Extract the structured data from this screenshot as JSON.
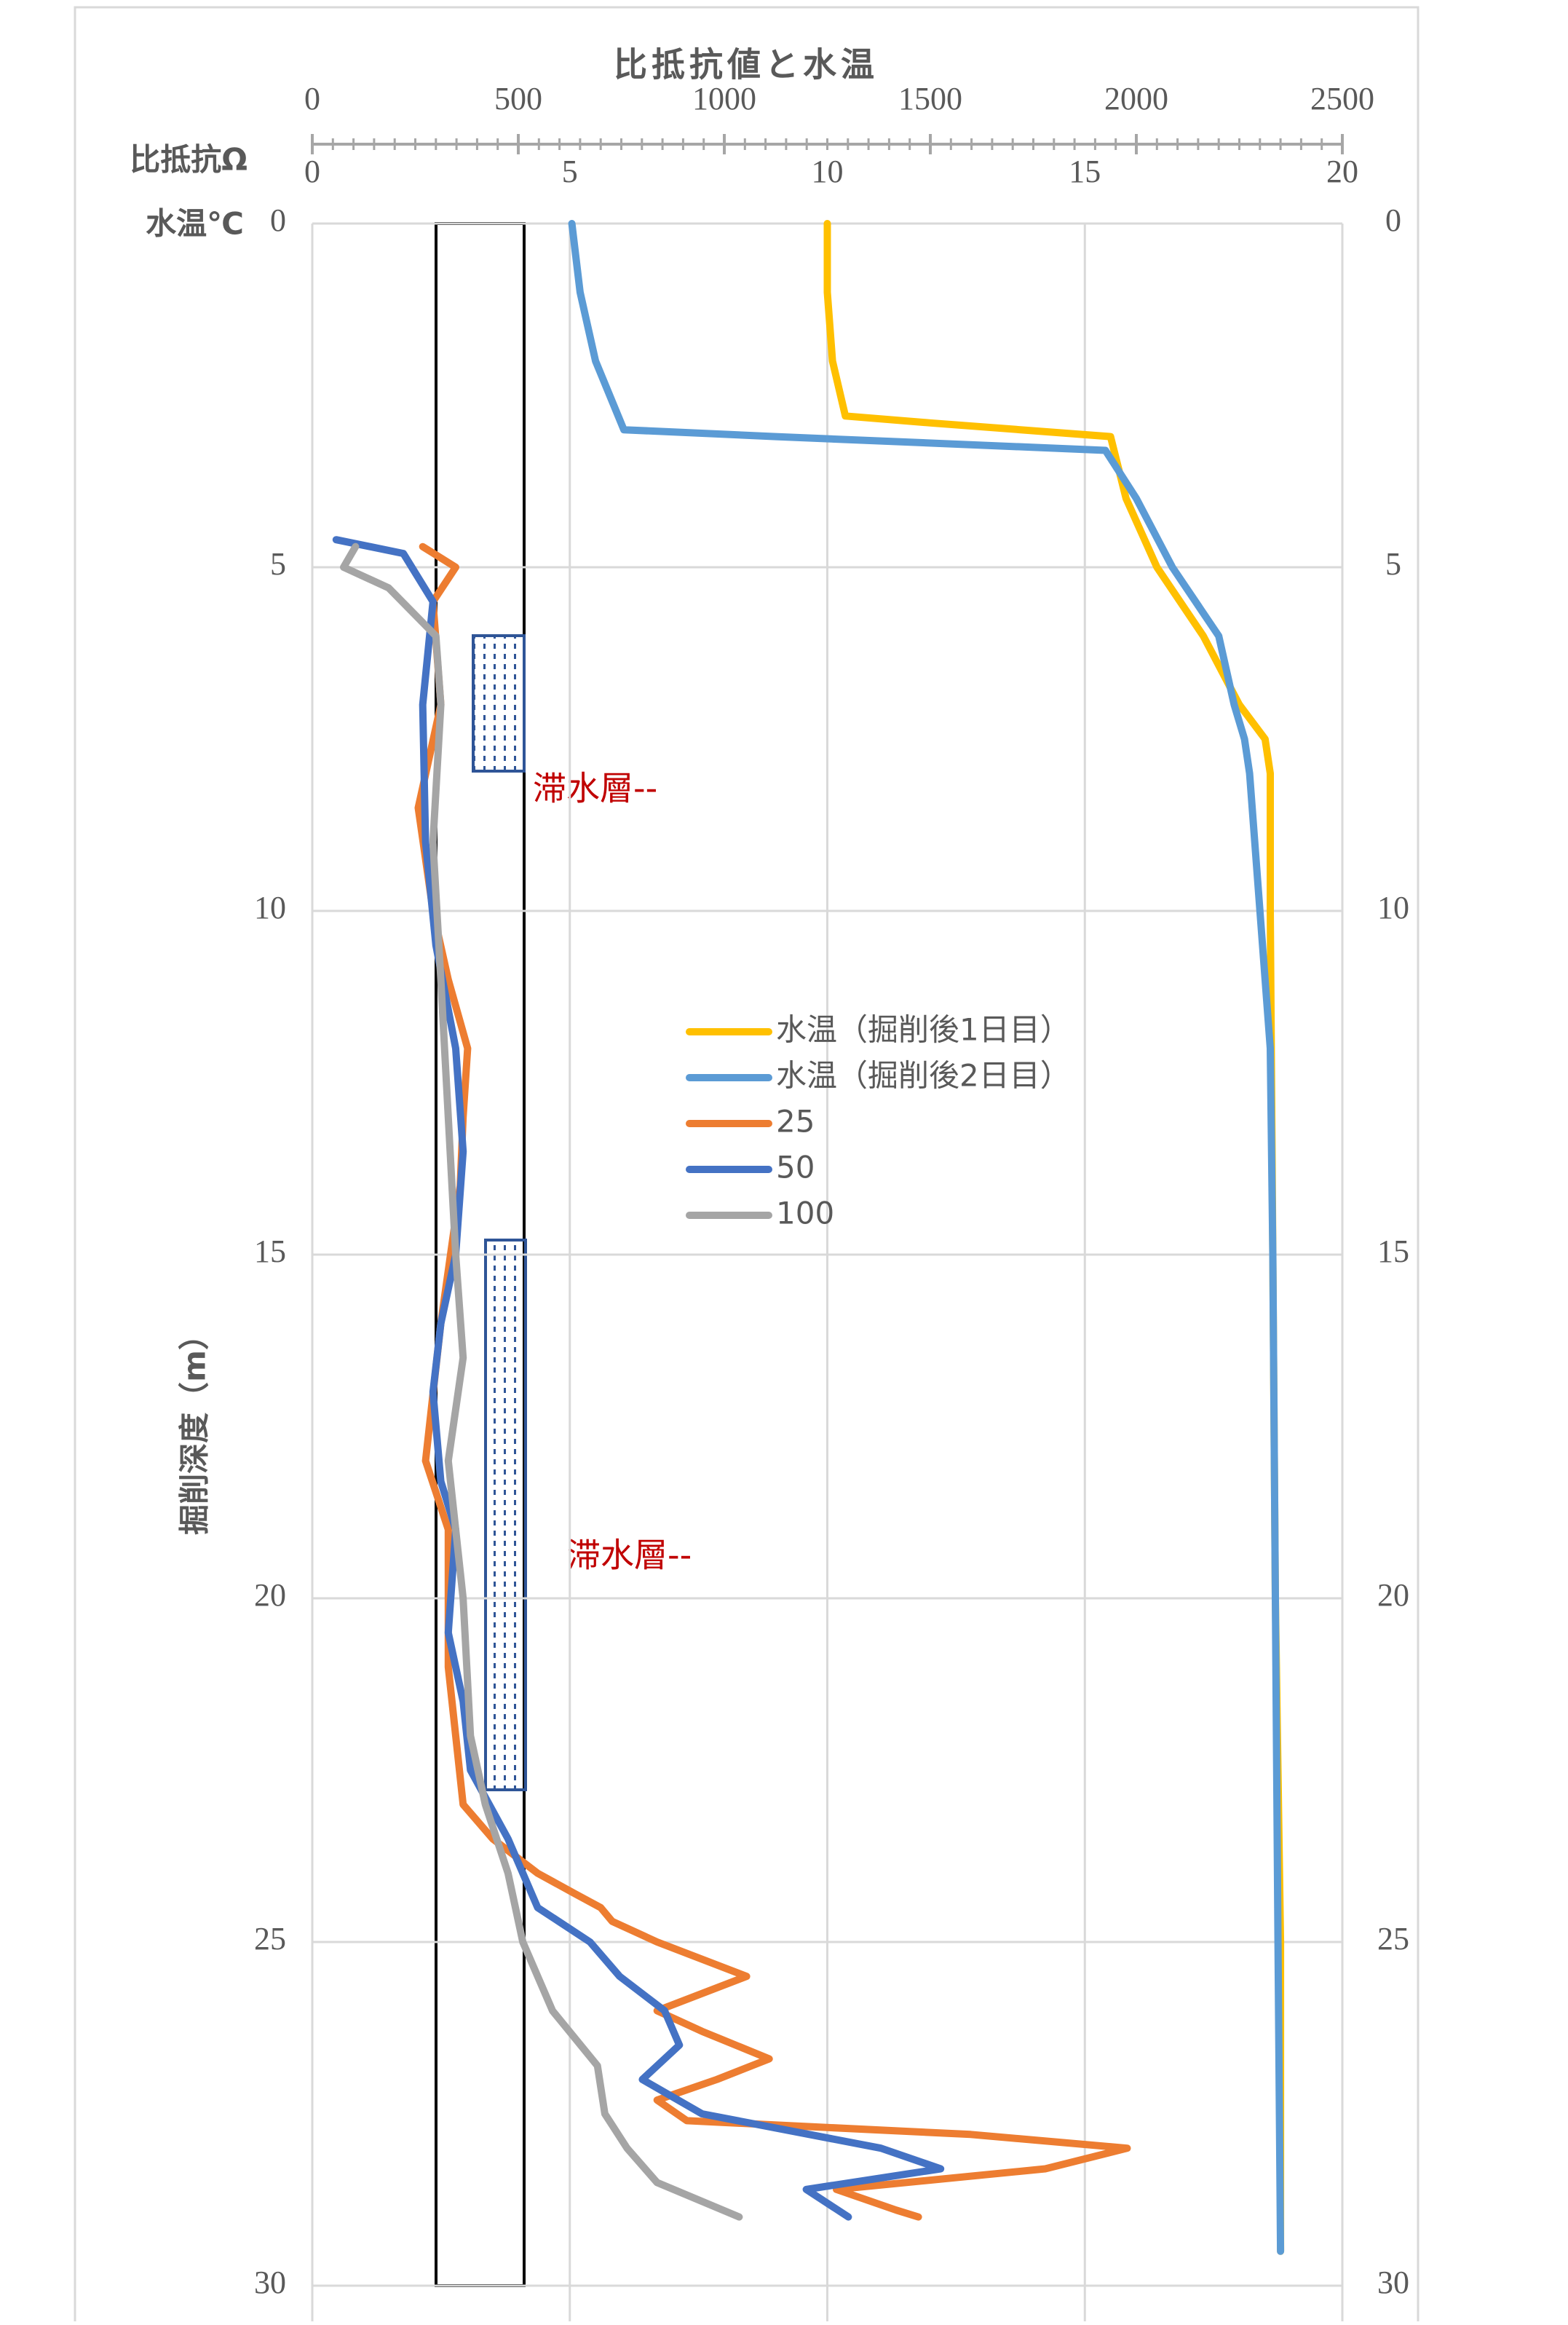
{
  "chart_data": {
    "type": "line",
    "title": "比抵抗値と水温",
    "x_label": "比抵抗Ω",
    "x2_label": "水温℃",
    "y_label": "掘削深度（m）",
    "annotations": [
      "滞水層--",
      "滞水層--"
    ],
    "xlim": [
      0,
      2500
    ],
    "xticks": [
      0,
      500,
      1000,
      1500,
      2000,
      2500
    ],
    "x2lim": [
      0,
      20
    ],
    "x2ticks": [
      0,
      5,
      10,
      15,
      20
    ],
    "ylim": [
      0,
      30
    ],
    "yticks": [
      0,
      5,
      10,
      15,
      20,
      25,
      30
    ],
    "y_reversed": true,
    "grid": true,
    "series": [
      {
        "name": "水温（掘削後1日目）",
        "color": "#ffc000",
        "axis": "x2",
        "depth": [
          0,
          1,
          2,
          2.8,
          2.9,
          3.1,
          4,
          5,
          6,
          7,
          7.5,
          8,
          10,
          15,
          20,
          25,
          29.5
        ],
        "values": [
          10.0,
          10.0,
          10.1,
          10.35,
          12.0,
          15.5,
          15.8,
          16.4,
          17.3,
          18.0,
          18.5,
          18.6,
          18.6,
          18.65,
          18.7,
          18.8,
          18.8
        ]
      },
      {
        "name": "水温（掘削後2日目）",
        "color": "#5b9bd5",
        "axis": "x2",
        "depth": [
          0,
          1,
          2,
          3,
          3.1,
          3.3,
          4,
          5,
          6,
          7,
          7.5,
          8,
          10,
          12,
          15,
          20,
          25,
          29.5
        ],
        "values": [
          5.04,
          5.2,
          5.5,
          6.05,
          9.0,
          15.4,
          16.0,
          16.7,
          17.6,
          17.9,
          18.1,
          18.2,
          18.4,
          18.6,
          18.65,
          18.7,
          18.75,
          18.8
        ]
      },
      {
        "name": "25",
        "color": "#ed7d31",
        "depth": [
          4.7,
          5,
          5.5,
          7,
          8.5,
          10,
          11,
          12,
          13,
          14,
          16,
          18,
          19,
          21,
          22,
          23,
          23.5,
          24,
          24.3,
          24.5,
          24.7,
          25,
          25.5,
          26,
          26.3,
          26.7,
          27,
          27.3,
          27.6,
          27.8,
          28,
          28.3,
          28.6,
          28.9,
          29
        ],
        "values": [
          268,
          348,
          293,
          312,
          257,
          293,
          330,
          377,
          366,
          359,
          312,
          275,
          330,
          330,
          348,
          366,
          438,
          547,
          638,
          700,
          728,
          837,
          1054,
          837,
          946,
          1109,
          982,
          837,
          909,
          1598,
          1978,
          1779,
          1272,
          1417,
          1471
        ]
      },
      {
        "name": "50",
        "color": "#4472c4",
        "depth": [
          4.6,
          4.8,
          5.5,
          7,
          9,
          10.5,
          12,
          13.5,
          15,
          16,
          17,
          18.3,
          19,
          20.5,
          21.5,
          22.5,
          23.5,
          24.5,
          25,
          25.5,
          26,
          26.5,
          27,
          27.5,
          28,
          28.3,
          28.6,
          29
        ],
        "values": [
          58,
          221,
          293,
          268,
          275,
          300,
          348,
          366,
          348,
          312,
          293,
          312,
          348,
          330,
          366,
          384,
          475,
          547,
          674,
          746,
          855,
          891,
          801,
          946,
          1380,
          1525,
          1199,
          1301
        ]
      },
      {
        "name": "100",
        "color": "#a5a5a5",
        "depth": [
          4.7,
          5,
          5.3,
          6,
          7,
          9,
          11,
          13,
          15,
          16.5,
          18,
          20,
          22,
          23,
          24,
          25,
          26,
          26.8,
          27.5,
          28,
          28.5,
          29
        ],
        "values": [
          105,
          76,
          185,
          300,
          312,
          293,
          312,
          330,
          348,
          366,
          330,
          366,
          384,
          420,
          475,
          511,
          583,
          692,
          710,
          764,
          837,
          1036
        ]
      }
    ]
  }
}
